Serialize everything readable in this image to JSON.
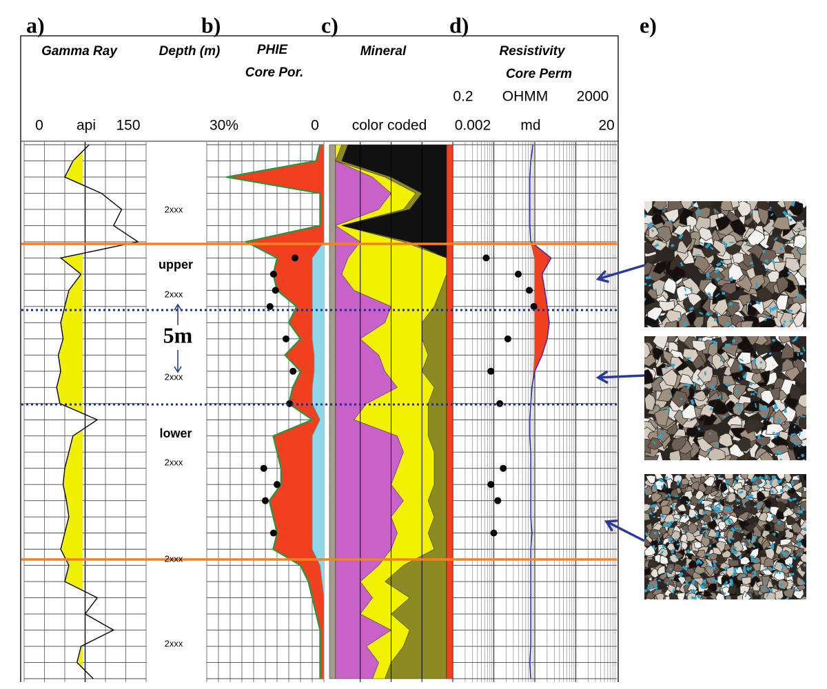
{
  "panel_labels": [
    "a)",
    "b)",
    "c)",
    "d)",
    "e)"
  ],
  "depth_track": {
    "title": "Depth (m)",
    "depth_labels": [
      "2xxx",
      "2xxx",
      "2xxx",
      "2xxx",
      "2xxx",
      "2xxx"
    ],
    "zones": [
      "upper",
      "lower"
    ],
    "interval_label": "5m"
  },
  "gamma_ray": {
    "title": "Gamma Ray",
    "unit": "api",
    "xlim": [
      0,
      150
    ],
    "xticks": [
      0,
      150
    ],
    "color": "#f0f000",
    "values": [
      80,
      60,
      50,
      95,
      120,
      110,
      140,
      45,
      70,
      55,
      50,
      45,
      48,
      42,
      45,
      40,
      44,
      90,
      60,
      55,
      50,
      48,
      52,
      55,
      50,
      45,
      55,
      50,
      90,
      75,
      110,
      70,
      65,
      85
    ]
  },
  "porosity": {
    "xlim": [
      30,
      0
    ],
    "xticks": [
      {
        "value": 30,
        "label": "30%"
      },
      0
    ],
    "series": [
      {
        "name": "PHIE",
        "color": "#1a9a3a",
        "fill": "#f04020",
        "values": [
          1,
          2,
          25,
          1,
          1,
          1,
          20,
          12,
          13,
          12,
          7,
          9,
          6,
          10,
          6,
          8,
          9,
          3,
          13,
          12,
          11,
          11,
          14,
          13,
          12,
          13,
          6,
          4,
          3,
          2,
          1,
          1,
          1,
          1
        ]
      },
      {
        "color": "#8fd8e8",
        "values": [
          0,
          0,
          0,
          0,
          0,
          0,
          0,
          3,
          3,
          3,
          3,
          3,
          3,
          2.5,
          2.5,
          3,
          3,
          1,
          3,
          3,
          3,
          3,
          3,
          3,
          3,
          3,
          1,
          0.5,
          0,
          0,
          0,
          0,
          0,
          0
        ]
      },
      {
        "name": "Core Por.",
        "color": "#000000",
        "values": [
          null,
          null,
          null,
          null,
          null,
          null,
          null,
          7.4,
          12.9,
          12.4,
          13.8,
          null,
          9.7,
          null,
          7.9,
          null,
          8.8,
          null,
          null,
          null,
          15.4,
          12,
          15,
          null,
          12.9,
          null,
          null,
          null,
          null,
          null,
          null,
          null,
          null,
          null
        ]
      }
    ]
  },
  "mineral": {
    "title": "Mineral",
    "scale_label": "color coded",
    "xlim": [
      0,
      1
    ],
    "series": [
      {
        "color": "#a39d8a",
        "values": [
          0.05,
          0.05,
          0.05,
          0.05,
          0.05,
          0.05,
          0.05,
          0.05,
          0.05,
          0.05,
          0.05,
          0.05,
          0.05,
          0.05,
          0.05,
          0.05,
          0.05,
          0.05,
          0.05,
          0.05,
          0.05,
          0.05,
          0.05,
          0.05,
          0.05,
          0.05,
          0.05,
          0.05,
          0.05,
          0.05,
          0.05,
          0.05,
          0.05,
          0.05
        ]
      },
      {
        "color": "#c862c8",
        "values": [
          0,
          0,
          0.3,
          0.45,
          0.35,
          0,
          0.2,
          0.1,
          0.05,
          0.15,
          0.45,
          0.4,
          0.2,
          0.35,
          0.4,
          0.5,
          0.25,
          0.15,
          0.5,
          0.55,
          0.5,
          0.45,
          0.55,
          0.45,
          0.5,
          0.45,
          0.35,
          0.2,
          0.3,
          0.2,
          0.45,
          0.25,
          0.35,
          0.3
        ]
      },
      {
        "color": "#f2f200",
        "values": [
          0.05,
          0,
          0.1,
          0.2,
          0.2,
          0.05,
          0.35,
          0.8,
          0.85,
          0.7,
          0.35,
          0.3,
          0.5,
          0.4,
          0.3,
          0.3,
          0.5,
          0.6,
          0.25,
          0.25,
          0.3,
          0.35,
          0.2,
          0.35,
          0.25,
          0.35,
          0.2,
          0.2,
          0.3,
          0.25,
          0.15,
          0.3,
          0.1,
          0.1
        ]
      },
      {
        "color": "#8c8a22",
        "values": [
          0.05,
          0.05,
          0.05,
          0.05,
          0.05,
          0,
          0.05,
          0,
          0,
          0.05,
          0.1,
          0.2,
          0.2,
          0.15,
          0.2,
          0.1,
          0.15,
          0.15,
          0.15,
          0.1,
          0.1,
          0.1,
          0.15,
          0.1,
          0.15,
          0.1,
          0.35,
          0.5,
          0.3,
          0.45,
          0.3,
          0.35,
          0.45,
          0.5
        ]
      },
      {
        "color": "#111111",
        "values": [
          0.8,
          0.85,
          0.45,
          0.2,
          0.3,
          0.85,
          0.3,
          0,
          0,
          0,
          0,
          0,
          0,
          0,
          0,
          0,
          0,
          0,
          0,
          0,
          0,
          0,
          0,
          0,
          0,
          0,
          0,
          0,
          0,
          0,
          0,
          0,
          0,
          0
        ]
      },
      {
        "color": "#f04020",
        "values": [
          0.05,
          0.05,
          0.05,
          0.05,
          0.05,
          0.05,
          0.05,
          0.05,
          0.05,
          0.05,
          0.05,
          0.05,
          0.05,
          0.05,
          0.05,
          0.05,
          0.05,
          0.05,
          0.05,
          0.05,
          0.05,
          0.05,
          0.05,
          0.05,
          0.05,
          0.05,
          0.05,
          0.05,
          0.05,
          0.05,
          0.05,
          0.05,
          0.05,
          0.05
        ]
      }
    ]
  },
  "resistivity": {
    "unit": "OHMM",
    "log": true,
    "xlim": [
      0.2,
      2000
    ],
    "xticks": [
      0.2,
      2000
    ],
    "series": [
      {
        "name": "Resistivity",
        "color": "#3030c0",
        "values": [
          18,
          16,
          15,
          15,
          15,
          15,
          16,
          50,
          30,
          35,
          40,
          45,
          40,
          30,
          20,
          17,
          16,
          15,
          15,
          16,
          16,
          16,
          16,
          16,
          17,
          16,
          16,
          16,
          16,
          16,
          16,
          16,
          15,
          16
        ]
      },
      {
        "color": "#f04020",
        "values": [
          18,
          16,
          15,
          15,
          15,
          15,
          16,
          20,
          20,
          20,
          20,
          20,
          20,
          20,
          19,
          17,
          16,
          15,
          15,
          16,
          16,
          16,
          16,
          16,
          17,
          16,
          16,
          16,
          16,
          16,
          16,
          16,
          15,
          16
        ]
      }
    ]
  },
  "core_perm": {
    "name": "Core Perm",
    "unit": "md",
    "log": true,
    "xlim": [
      0.002,
      20
    ],
    "xticks": [
      0.002,
      20
    ],
    "color": "#000000",
    "values": [
      null,
      null,
      null,
      null,
      null,
      null,
      null,
      0.013,
      0.079,
      0.147,
      0.19,
      null,
      0.044,
      null,
      0.017,
      null,
      0.028,
      null,
      null,
      null,
      0.034,
      0.017,
      0.025,
      null,
      0.02,
      null,
      null,
      null,
      null,
      null,
      null,
      null,
      null,
      null
    ]
  }
}
